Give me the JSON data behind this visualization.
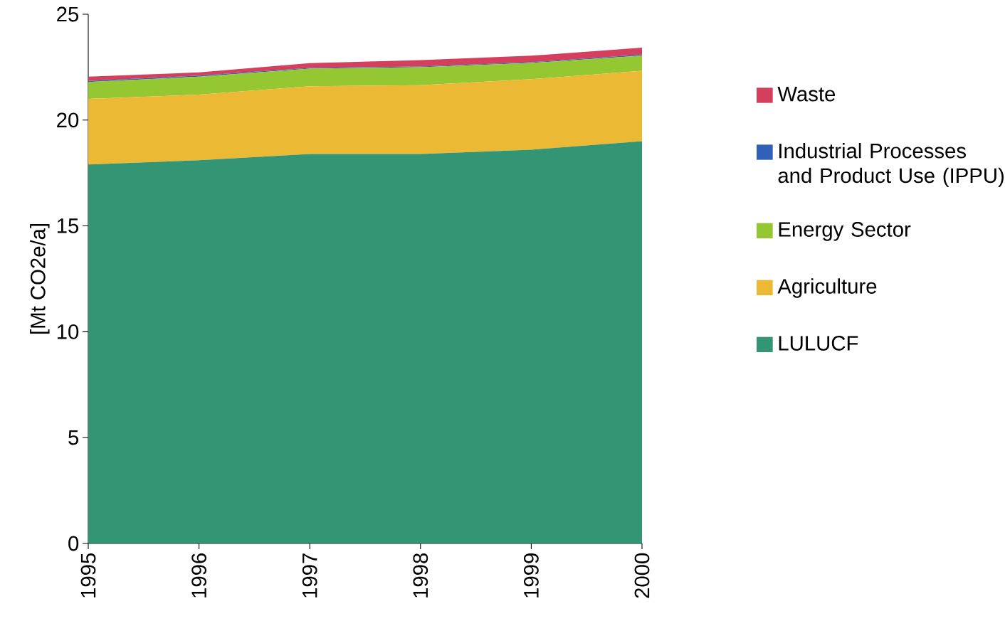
{
  "chart_data": {
    "type": "area",
    "stacked": true,
    "ylabel": "[Mt CO2e/a]",
    "x": [
      1995,
      1996,
      1997,
      1998,
      1999,
      2000
    ],
    "xlim": [
      1995,
      2000
    ],
    "xticks": [
      1995,
      1996,
      1997,
      1998,
      1999,
      2000
    ],
    "ylim": [
      0,
      25
    ],
    "yticks": [
      0,
      5,
      10,
      15,
      20,
      25
    ],
    "grid": false,
    "legend": "right",
    "series": [
      {
        "name": "LULUCF",
        "color": "#339573",
        "values": [
          17.9,
          18.1,
          18.4,
          18.4,
          18.6,
          19.0
        ]
      },
      {
        "name": "Agriculture",
        "color": "#ecb935",
        "values": [
          3.1,
          3.1,
          3.2,
          3.25,
          3.33,
          3.33
        ]
      },
      {
        "name": "Energy Sector",
        "color": "#94c731",
        "values": [
          0.8,
          0.85,
          0.83,
          0.85,
          0.77,
          0.71
        ]
      },
      {
        "name": "Industrial Processes and Product Use (IPPU)",
        "color": "#3060b8",
        "values": [
          0.05,
          0.05,
          0.03,
          0.03,
          0.03,
          0.05
        ]
      },
      {
        "name": "Waste",
        "color": "#d43f5d",
        "values": [
          0.2,
          0.15,
          0.23,
          0.3,
          0.31,
          0.33
        ]
      }
    ]
  }
}
